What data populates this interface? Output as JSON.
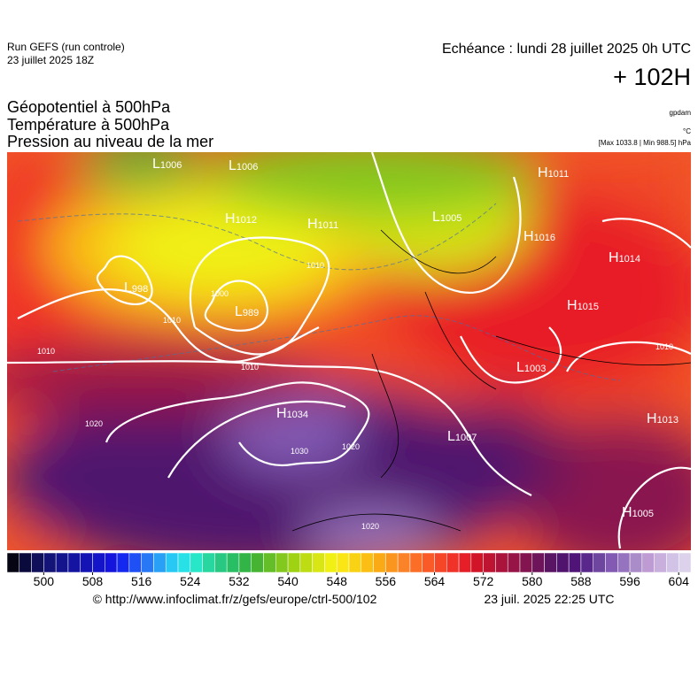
{
  "header": {
    "run": "Run GEFS (run controle)",
    "run_date": "23 juillet 2025 18Z",
    "echeance": "Echéance : lundi 28 juillet 2025 0h UTC",
    "lead": "+ 102H",
    "params": [
      "Géopotentiel à 500hPa",
      "Température à 500hPa",
      "Pression au niveau de la mer"
    ],
    "units": [
      "gpdam",
      "°C",
      "[Max 1033.8 | Min 988.5] hPa"
    ]
  },
  "centers": [
    {
      "letter": "L",
      "value": 1006
    },
    {
      "letter": "L",
      "value": 1006
    },
    {
      "letter": "H",
      "value": 1011
    },
    {
      "letter": "H",
      "value": 1012
    },
    {
      "letter": "H",
      "value": 1011
    },
    {
      "letter": "L",
      "value": 1005
    },
    {
      "letter": "H",
      "value": 1016
    },
    {
      "letter": "H",
      "value": 1014
    },
    {
      "letter": "L",
      "value": 998
    },
    {
      "letter": "L",
      "value": 989
    },
    {
      "letter": "H",
      "value": 1015
    },
    {
      "letter": "L",
      "value": 1003
    },
    {
      "letter": "H",
      "value": 1034
    },
    {
      "letter": "L",
      "value": 1007
    },
    {
      "letter": "H",
      "value": 1013
    },
    {
      "letter": "H",
      "value": 1005
    }
  ],
  "isobar_labels": [
    1010,
    1020,
    1020,
    1030,
    1020,
    1000,
    1010,
    1010,
    1010,
    1010
  ],
  "colorbar": {
    "lim": [
      494,
      606
    ],
    "ticks": [
      500,
      508,
      516,
      524,
      532,
      540,
      548,
      556,
      564,
      572,
      580,
      588,
      596,
      604
    ],
    "colors": [
      "#050514",
      "#0a0a3c",
      "#0f0f5a",
      "#141478",
      "#14148c",
      "#1414a0",
      "#1414b4",
      "#1414c8",
      "#1414dc",
      "#1428f0",
      "#1e50f5",
      "#2878f5",
      "#28a0f5",
      "#28c8f5",
      "#28e1e6",
      "#28e6c8",
      "#28d7a0",
      "#28c882",
      "#28be64",
      "#32b446",
      "#46b432",
      "#64be28",
      "#82c81e",
      "#a0d214",
      "#bedc14",
      "#d7e614",
      "#f0f014",
      "#fae614",
      "#fad214",
      "#fabe14",
      "#faaa14",
      "#fa961e",
      "#fa8228",
      "#fa6e28",
      "#fa5a28",
      "#f54628",
      "#f03228",
      "#e61e28",
      "#d21428",
      "#be1432",
      "#aa143c",
      "#961446",
      "#821450",
      "#6e145a",
      "#5a1464",
      "#50146e",
      "#501478",
      "#5a288c",
      "#6e46a0",
      "#825ab4",
      "#9673be",
      "#aa8cc8",
      "#be9bd2",
      "#c8afdc",
      "#d2c3e6",
      "#dcd2ec"
    ]
  },
  "footer": {
    "source": "© http://www.infoclimat.fr/z/gefs/europe/ctrl-500/102",
    "time": "23 juil. 2025 22:25 UTC"
  }
}
